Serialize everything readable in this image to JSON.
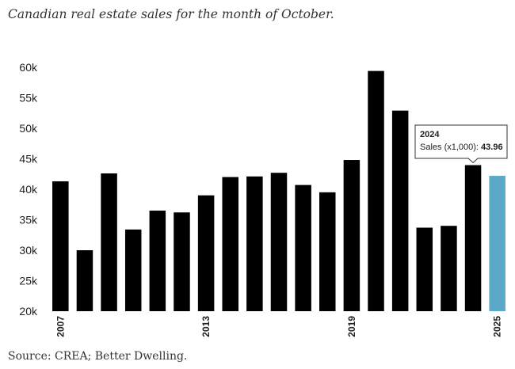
{
  "chart_data": {
    "type": "bar",
    "subtitle": "Canadian real estate sales for the month of October.",
    "source": "Source: CREA; Better Dwelling.",
    "x": [
      2007,
      2008,
      2009,
      2010,
      2011,
      2012,
      2013,
      2014,
      2015,
      2016,
      2017,
      2018,
      2019,
      2020,
      2021,
      2022,
      2023,
      2024,
      2025
    ],
    "values": [
      41.3,
      30.0,
      42.6,
      33.4,
      36.5,
      36.2,
      39.0,
      42.0,
      42.1,
      42.7,
      40.7,
      39.5,
      44.8,
      59.4,
      52.9,
      33.7,
      34.0,
      43.96,
      42.2
    ],
    "x_tick_labels": [
      "2007",
      "2013",
      "2019",
      "2025"
    ],
    "y_ticks": [
      20,
      25,
      30,
      35,
      40,
      45,
      50,
      55,
      60
    ],
    "y_tick_labels": [
      "20k",
      "25k",
      "30k",
      "35k",
      "40k",
      "45k",
      "50k",
      "55k",
      "60k"
    ],
    "ylim": [
      20,
      62
    ],
    "colors": {
      "default": "#000000",
      "highlight": "#5aa9c8",
      "highlight_year": 2025
    },
    "tooltip": {
      "year": "2024",
      "label": "Sales (x1,000): ",
      "value": "43.96"
    }
  }
}
